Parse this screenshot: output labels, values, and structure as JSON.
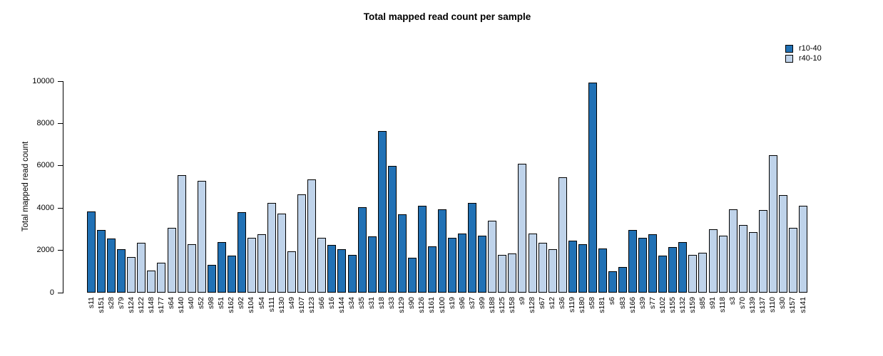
{
  "chart_data": {
    "type": "bar",
    "title": "Total mapped read count per sample",
    "xlabel": "",
    "ylabel": "Total mapped read count",
    "ylim": [
      0,
      10000
    ],
    "yticks": [
      0,
      2000,
      4000,
      6000,
      8000,
      10000
    ],
    "grid": false,
    "legend_position": "top-right",
    "legend": [
      {
        "label": "r10-40",
        "color": "#2171B5"
      },
      {
        "label": "r40-10",
        "color": "#BFD3EA"
      }
    ],
    "samples": [
      {
        "name": "s11",
        "value": 3850,
        "group": "r10-40"
      },
      {
        "name": "s151",
        "value": 2950,
        "group": "r10-40"
      },
      {
        "name": "s28",
        "value": 2550,
        "group": "r10-40"
      },
      {
        "name": "s79",
        "value": 2050,
        "group": "r10-40"
      },
      {
        "name": "s124",
        "value": 1700,
        "group": "r40-10"
      },
      {
        "name": "s122",
        "value": 2350,
        "group": "r40-10"
      },
      {
        "name": "s148",
        "value": 1050,
        "group": "r40-10"
      },
      {
        "name": "s177",
        "value": 1400,
        "group": "r40-10"
      },
      {
        "name": "s64",
        "value": 3050,
        "group": "r40-10"
      },
      {
        "name": "s140",
        "value": 5550,
        "group": "r40-10"
      },
      {
        "name": "s40",
        "value": 2300,
        "group": "r40-10"
      },
      {
        "name": "s52",
        "value": 5300,
        "group": "r40-10"
      },
      {
        "name": "s98",
        "value": 1300,
        "group": "r10-40"
      },
      {
        "name": "s51",
        "value": 2400,
        "group": "r10-40"
      },
      {
        "name": "s162",
        "value": 1750,
        "group": "r10-40"
      },
      {
        "name": "s92",
        "value": 3800,
        "group": "r10-40"
      },
      {
        "name": "s104",
        "value": 2600,
        "group": "r40-10"
      },
      {
        "name": "s54",
        "value": 2750,
        "group": "r40-10"
      },
      {
        "name": "s111",
        "value": 4250,
        "group": "r40-10"
      },
      {
        "name": "s130",
        "value": 3750,
        "group": "r40-10"
      },
      {
        "name": "s49",
        "value": 1950,
        "group": "r40-10"
      },
      {
        "name": "s107",
        "value": 4650,
        "group": "r40-10"
      },
      {
        "name": "s123",
        "value": 5350,
        "group": "r40-10"
      },
      {
        "name": "s66",
        "value": 2600,
        "group": "r40-10"
      },
      {
        "name": "s16",
        "value": 2250,
        "group": "r10-40"
      },
      {
        "name": "s144",
        "value": 2050,
        "group": "r10-40"
      },
      {
        "name": "s34",
        "value": 1800,
        "group": "r10-40"
      },
      {
        "name": "s35",
        "value": 4050,
        "group": "r10-40"
      },
      {
        "name": "s31",
        "value": 2650,
        "group": "r10-40"
      },
      {
        "name": "s18",
        "value": 7650,
        "group": "r10-40"
      },
      {
        "name": "s33",
        "value": 6000,
        "group": "r10-40"
      },
      {
        "name": "s129",
        "value": 3700,
        "group": "r10-40"
      },
      {
        "name": "s90",
        "value": 1650,
        "group": "r10-40"
      },
      {
        "name": "s126",
        "value": 4100,
        "group": "r10-40"
      },
      {
        "name": "s161",
        "value": 2200,
        "group": "r10-40"
      },
      {
        "name": "s100",
        "value": 3950,
        "group": "r10-40"
      },
      {
        "name": "s19",
        "value": 2600,
        "group": "r10-40"
      },
      {
        "name": "s96",
        "value": 2800,
        "group": "r10-40"
      },
      {
        "name": "s37",
        "value": 4250,
        "group": "r10-40"
      },
      {
        "name": "s99",
        "value": 2700,
        "group": "r10-40"
      },
      {
        "name": "s188",
        "value": 3400,
        "group": "r40-10"
      },
      {
        "name": "s125",
        "value": 1800,
        "group": "r40-10"
      },
      {
        "name": "s158",
        "value": 1850,
        "group": "r40-10"
      },
      {
        "name": "s9",
        "value": 6100,
        "group": "r40-10"
      },
      {
        "name": "s128",
        "value": 2800,
        "group": "r40-10"
      },
      {
        "name": "s67",
        "value": 2350,
        "group": "r40-10"
      },
      {
        "name": "s12",
        "value": 2050,
        "group": "r40-10"
      },
      {
        "name": "s36",
        "value": 5450,
        "group": "r40-10"
      },
      {
        "name": "s119",
        "value": 2450,
        "group": "r10-40"
      },
      {
        "name": "s180",
        "value": 2300,
        "group": "r10-40"
      },
      {
        "name": "s58",
        "value": 9950,
        "group": "r10-40"
      },
      {
        "name": "s181",
        "value": 2100,
        "group": "r10-40"
      },
      {
        "name": "s6",
        "value": 1000,
        "group": "r10-40"
      },
      {
        "name": "s83",
        "value": 1200,
        "group": "r10-40"
      },
      {
        "name": "s166",
        "value": 2950,
        "group": "r10-40"
      },
      {
        "name": "s39",
        "value": 2600,
        "group": "r10-40"
      },
      {
        "name": "s77",
        "value": 2750,
        "group": "r10-40"
      },
      {
        "name": "s102",
        "value": 1750,
        "group": "r10-40"
      },
      {
        "name": "s155",
        "value": 2150,
        "group": "r10-40"
      },
      {
        "name": "s132",
        "value": 2400,
        "group": "r10-40"
      },
      {
        "name": "s159",
        "value": 1800,
        "group": "r40-10"
      },
      {
        "name": "s85",
        "value": 1900,
        "group": "r40-10"
      },
      {
        "name": "s91",
        "value": 3000,
        "group": "r40-10"
      },
      {
        "name": "s118",
        "value": 2700,
        "group": "r40-10"
      },
      {
        "name": "s3",
        "value": 3950,
        "group": "r40-10"
      },
      {
        "name": "s70",
        "value": 3200,
        "group": "r40-10"
      },
      {
        "name": "s139",
        "value": 2850,
        "group": "r40-10"
      },
      {
        "name": "s137",
        "value": 3900,
        "group": "r40-10"
      },
      {
        "name": "s110",
        "value": 6500,
        "group": "r40-10"
      },
      {
        "name": "s30",
        "value": 4600,
        "group": "r40-10"
      },
      {
        "name": "s157",
        "value": 3050,
        "group": "r40-10"
      },
      {
        "name": "s141",
        "value": 4100,
        "group": "r40-10"
      }
    ]
  }
}
